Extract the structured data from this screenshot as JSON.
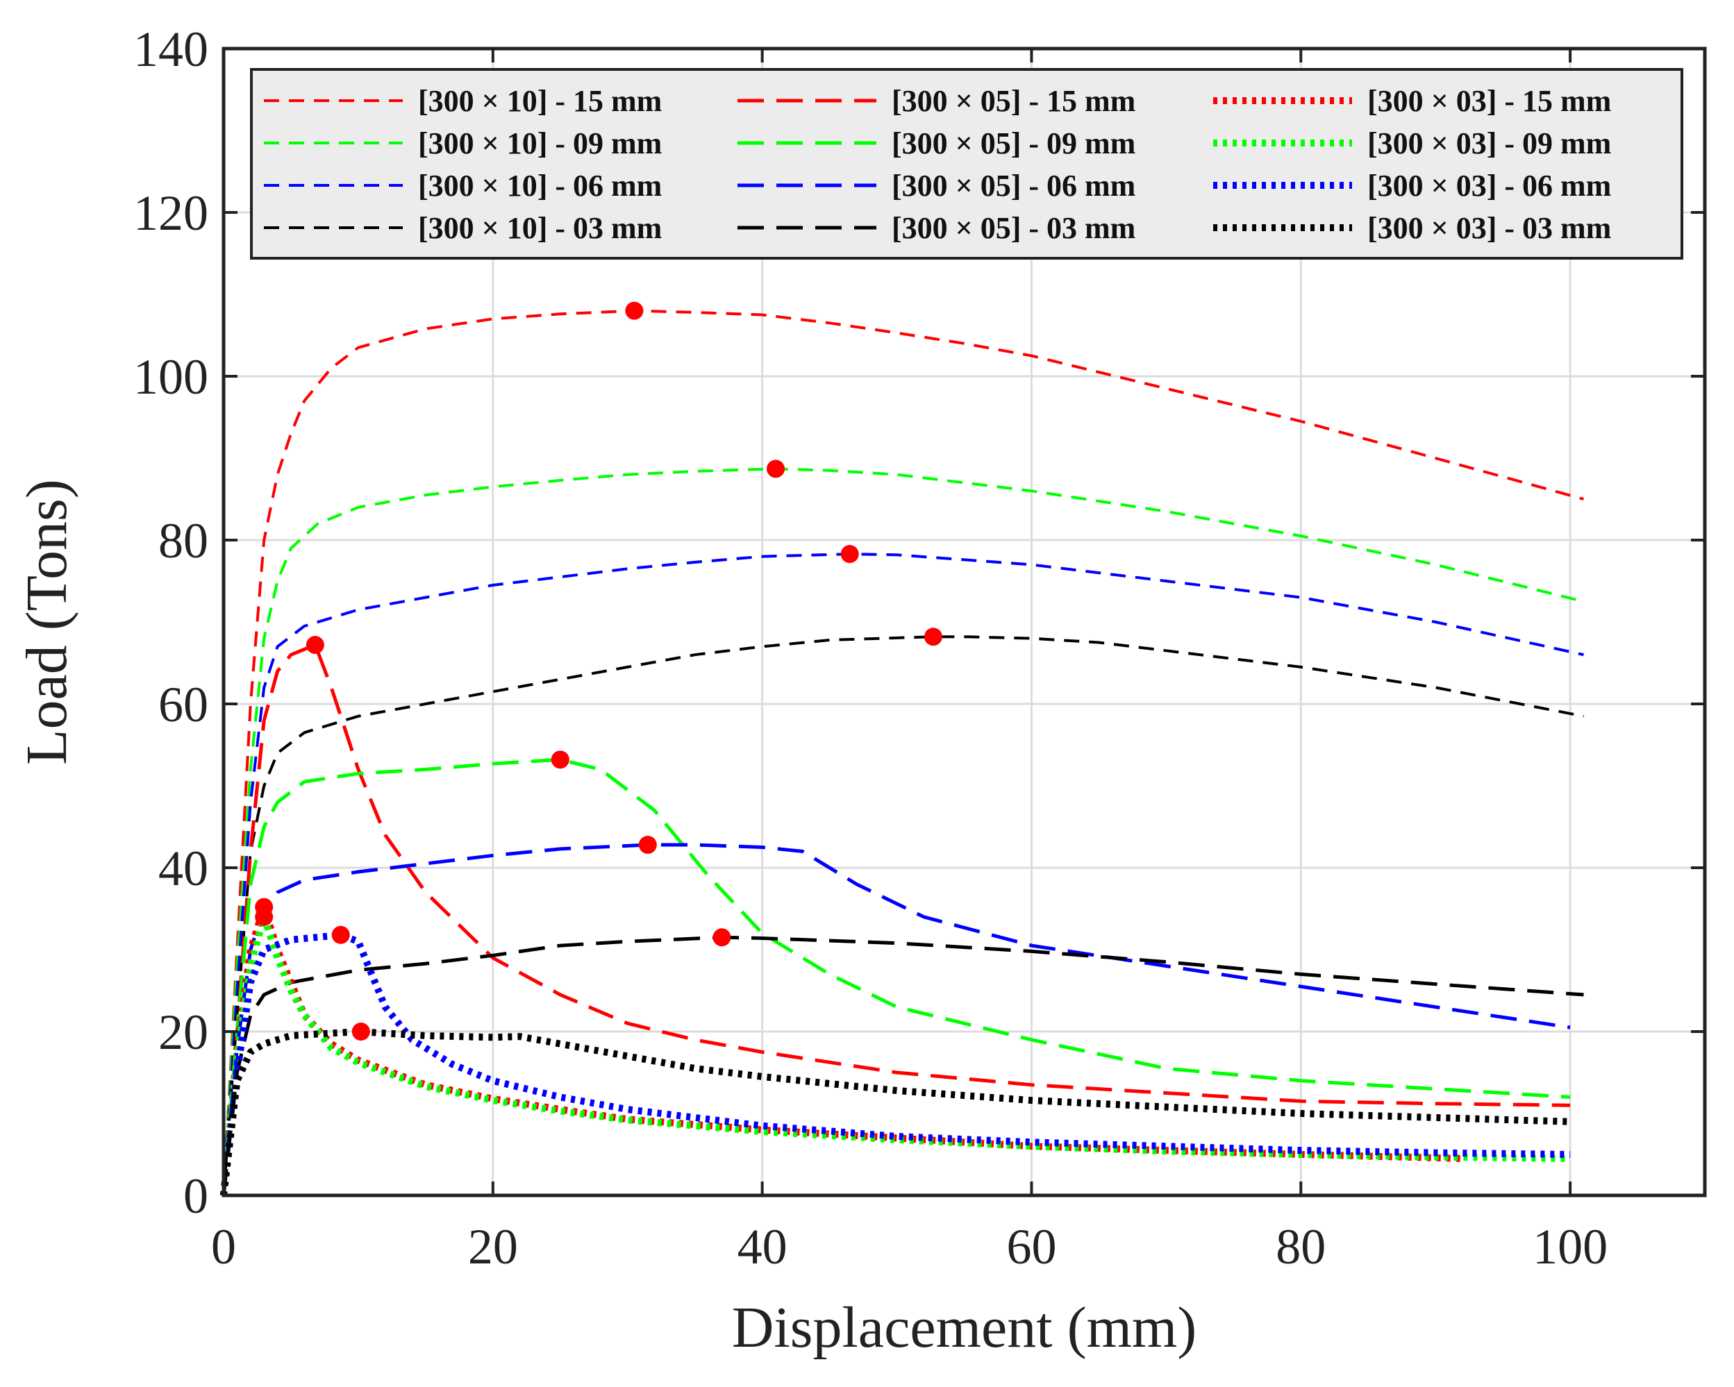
{
  "chart_data": {
    "type": "line",
    "title": "",
    "xlabel": "Displacement (mm)",
    "ylabel": "Load (Tons)",
    "xlim": [
      0,
      110
    ],
    "ylim": [
      0,
      140
    ],
    "xticks": [
      0,
      20,
      40,
      60,
      80,
      100
    ],
    "yticks": [
      0,
      20,
      40,
      60,
      80,
      100,
      120,
      140
    ],
    "grid": true,
    "legend_position": "top",
    "legend_columns": 3,
    "series": [
      {
        "name": "[300 × 10] - 15 mm",
        "color": "#ff0000",
        "style": "dashed-short",
        "points": [
          [
            0,
            0
          ],
          [
            1,
            30
          ],
          [
            2,
            60
          ],
          [
            3,
            80
          ],
          [
            4,
            88
          ],
          [
            5,
            93
          ],
          [
            6,
            97
          ],
          [
            7,
            99
          ],
          [
            8,
            101
          ],
          [
            10,
            103.5
          ],
          [
            15,
            105.8
          ],
          [
            20,
            107
          ],
          [
            25,
            107.6
          ],
          [
            30.5,
            108
          ],
          [
            35,
            107.8
          ],
          [
            40,
            107.5
          ],
          [
            45,
            106.5
          ],
          [
            50,
            105.3
          ],
          [
            55,
            104
          ],
          [
            60,
            102.5
          ],
          [
            70,
            98.5
          ],
          [
            80,
            94.5
          ],
          [
            90,
            90
          ],
          [
            101,
            85
          ]
        ],
        "peak": [
          30.5,
          108
        ]
      },
      {
        "name": "[300 × 10] - 09 mm",
        "color": "#00ff00",
        "style": "dashed-short",
        "points": [
          [
            0,
            0
          ],
          [
            1,
            28
          ],
          [
            2,
            52
          ],
          [
            3,
            68
          ],
          [
            4,
            75
          ],
          [
            5,
            79
          ],
          [
            7,
            82
          ],
          [
            10,
            84
          ],
          [
            15,
            85.5
          ],
          [
            20,
            86.5
          ],
          [
            25,
            87.3
          ],
          [
            30,
            88
          ],
          [
            35,
            88.4
          ],
          [
            41,
            88.7
          ],
          [
            45,
            88.5
          ],
          [
            50,
            88
          ],
          [
            55,
            87
          ],
          [
            60,
            86
          ],
          [
            70,
            83.5
          ],
          [
            80,
            80.5
          ],
          [
            90,
            77
          ],
          [
            101,
            72.5
          ]
        ],
        "peak": [
          41,
          88.7
        ]
      },
      {
        "name": "[300 × 10] - 06 mm",
        "color": "#0000ff",
        "style": "dashed-short",
        "points": [
          [
            0,
            0
          ],
          [
            1,
            25
          ],
          [
            2,
            48
          ],
          [
            3,
            62
          ],
          [
            4,
            67
          ],
          [
            6,
            69.5
          ],
          [
            10,
            71.5
          ],
          [
            15,
            73
          ],
          [
            20,
            74.5
          ],
          [
            25,
            75.5
          ],
          [
            30,
            76.5
          ],
          [
            35,
            77.3
          ],
          [
            40,
            78
          ],
          [
            46.5,
            78.3
          ],
          [
            50,
            78.2
          ],
          [
            55,
            77.6
          ],
          [
            60,
            77
          ],
          [
            70,
            75
          ],
          [
            80,
            73
          ],
          [
            90,
            70
          ],
          [
            101,
            66
          ]
        ],
        "peak": [
          46.5,
          78.3
        ]
      },
      {
        "name": "[300 × 10] - 03 mm",
        "color": "#000000",
        "style": "dashed-short",
        "points": [
          [
            0,
            0
          ],
          [
            1,
            22
          ],
          [
            2,
            42
          ],
          [
            3,
            50
          ],
          [
            4,
            54
          ],
          [
            6,
            56.5
          ],
          [
            10,
            58.5
          ],
          [
            15,
            60
          ],
          [
            20,
            61.5
          ],
          [
            25,
            63
          ],
          [
            30,
            64.5
          ],
          [
            35,
            66
          ],
          [
            40,
            67
          ],
          [
            45,
            67.8
          ],
          [
            52.7,
            68.2
          ],
          [
            55,
            68.2
          ],
          [
            60,
            68
          ],
          [
            65,
            67.5
          ],
          [
            70,
            66.5
          ],
          [
            80,
            64.5
          ],
          [
            90,
            62
          ],
          [
            101,
            58.5
          ]
        ],
        "peak": [
          52.7,
          68.2
        ]
      },
      {
        "name": "[300 × 05] - 15 mm",
        "color": "#ff0000",
        "style": "dashed-long",
        "points": [
          [
            0,
            0
          ],
          [
            1,
            20
          ],
          [
            2,
            42
          ],
          [
            3,
            58
          ],
          [
            4,
            64
          ],
          [
            5,
            66
          ],
          [
            6.8,
            67.2
          ],
          [
            8,
            62
          ],
          [
            10,
            52
          ],
          [
            12,
            44
          ],
          [
            15,
            37
          ],
          [
            20,
            29
          ],
          [
            25,
            24.5
          ],
          [
            30,
            21
          ],
          [
            35,
            19
          ],
          [
            40,
            17.5
          ],
          [
            50,
            15
          ],
          [
            60,
            13.5
          ],
          [
            70,
            12.5
          ],
          [
            80,
            11.5
          ],
          [
            90,
            11.2
          ],
          [
            100,
            11
          ]
        ],
        "peak": [
          6.8,
          67.2
        ]
      },
      {
        "name": "[300 × 05] - 09 mm",
        "color": "#00ff00",
        "style": "dashed-long",
        "points": [
          [
            0,
            0
          ],
          [
            1,
            20
          ],
          [
            2,
            38
          ],
          [
            3,
            45
          ],
          [
            4,
            48
          ],
          [
            6,
            50.5
          ],
          [
            10,
            51.5
          ],
          [
            15,
            52
          ],
          [
            20,
            52.7
          ],
          [
            25,
            53.2
          ],
          [
            28,
            52
          ],
          [
            32,
            47
          ],
          [
            36,
            39
          ],
          [
            40,
            32
          ],
          [
            45,
            27
          ],
          [
            50,
            23
          ],
          [
            60,
            19
          ],
          [
            70,
            15.5
          ],
          [
            80,
            14
          ],
          [
            90,
            13
          ],
          [
            100,
            12
          ]
        ],
        "peak": [
          25,
          53.2
        ]
      },
      {
        "name": "[300 × 05] - 06 mm",
        "color": "#0000ff",
        "style": "dashed-long",
        "points": [
          [
            0,
            0
          ],
          [
            1,
            18
          ],
          [
            2,
            30
          ],
          [
            3,
            35
          ],
          [
            4,
            37
          ],
          [
            6,
            38.5
          ],
          [
            10,
            39.5
          ],
          [
            15,
            40.5
          ],
          [
            20,
            41.5
          ],
          [
            25,
            42.3
          ],
          [
            31.5,
            42.8
          ],
          [
            35,
            42.8
          ],
          [
            40,
            42.5
          ],
          [
            43,
            42
          ],
          [
            47,
            38
          ],
          [
            52,
            34
          ],
          [
            60,
            30.5
          ],
          [
            70,
            28
          ],
          [
            80,
            25.5
          ],
          [
            90,
            23
          ],
          [
            100,
            20.5
          ]
        ],
        "peak": [
          31.5,
          42.8
        ]
      },
      {
        "name": "[300 × 05] - 03 mm",
        "color": "#000000",
        "style": "dashed-long",
        "points": [
          [
            0,
            0
          ],
          [
            1,
            15
          ],
          [
            2,
            22
          ],
          [
            3,
            24.5
          ],
          [
            5,
            26
          ],
          [
            10,
            27.5
          ],
          [
            15,
            28.3
          ],
          [
            20,
            29.3
          ],
          [
            25,
            30.5
          ],
          [
            30,
            31
          ],
          [
            37,
            31.5
          ],
          [
            40,
            31.4
          ],
          [
            50,
            30.8
          ],
          [
            60,
            29.8
          ],
          [
            70,
            28.5
          ],
          [
            80,
            27
          ],
          [
            90,
            25.8
          ],
          [
            101,
            24.5
          ]
        ],
        "peak": [
          37,
          31.5
        ]
      },
      {
        "name": "[300 × 03] - 15 mm",
        "color": "#ff0000",
        "style": "dotted",
        "points": [
          [
            0,
            0
          ],
          [
            1,
            18
          ],
          [
            2,
            30
          ],
          [
            3,
            35.2
          ],
          [
            4,
            30
          ],
          [
            5,
            26
          ],
          [
            6,
            22
          ],
          [
            8,
            18.5
          ],
          [
            10,
            16.5
          ],
          [
            15,
            13.5
          ],
          [
            20,
            11.8
          ],
          [
            25,
            10.5
          ],
          [
            30,
            9.3
          ],
          [
            40,
            8
          ],
          [
            50,
            7
          ],
          [
            60,
            6
          ],
          [
            70,
            5.5
          ],
          [
            80,
            5
          ],
          [
            92,
            4.5
          ]
        ],
        "peak": [
          3,
          35.2
        ]
      },
      {
        "name": "[300 × 03] - 09 mm",
        "color": "#00ff00",
        "style": "dotted",
        "points": [
          [
            0,
            0
          ],
          [
            1,
            17
          ],
          [
            2,
            28
          ],
          [
            3,
            34
          ],
          [
            4,
            29
          ],
          [
            5,
            25
          ],
          [
            6,
            22
          ],
          [
            8,
            18
          ],
          [
            10,
            16.2
          ],
          [
            15,
            13.3
          ],
          [
            20,
            11.6
          ],
          [
            25,
            10.3
          ],
          [
            30,
            9.2
          ],
          [
            40,
            7.8
          ],
          [
            50,
            6.8
          ],
          [
            60,
            6
          ],
          [
            70,
            5.4
          ],
          [
            80,
            5
          ],
          [
            90,
            4.7
          ],
          [
            100,
            4.5
          ]
        ],
        "peak": [
          3,
          34
        ]
      },
      {
        "name": "[300 × 03] - 06 mm",
        "color": "#0000ff",
        "style": "dotted",
        "points": [
          [
            0,
            0
          ],
          [
            1,
            15
          ],
          [
            2,
            26
          ],
          [
            3,
            30
          ],
          [
            5,
            31.2
          ],
          [
            8.7,
            31.8
          ],
          [
            10,
            31
          ],
          [
            11,
            27
          ],
          [
            12,
            23
          ],
          [
            14,
            19
          ],
          [
            17,
            16
          ],
          [
            20,
            14
          ],
          [
            25,
            12
          ],
          [
            30,
            10.5
          ],
          [
            40,
            8.5
          ],
          [
            50,
            7.2
          ],
          [
            60,
            6.5
          ],
          [
            70,
            6
          ],
          [
            80,
            5.5
          ],
          [
            90,
            5.2
          ],
          [
            100,
            5
          ]
        ],
        "peak": [
          8.7,
          31.8
        ]
      },
      {
        "name": "[300 × 03] - 03 mm",
        "color": "#000000",
        "style": "dotted",
        "points": [
          [
            0,
            0
          ],
          [
            1,
            14
          ],
          [
            2,
            17.5
          ],
          [
            3,
            18.5
          ],
          [
            5,
            19.5
          ],
          [
            10,
            20
          ],
          [
            15,
            19.5
          ],
          [
            20,
            19.3
          ],
          [
            22,
            19.4
          ],
          [
            25,
            18.5
          ],
          [
            30,
            17
          ],
          [
            35,
            15.5
          ],
          [
            40,
            14.5
          ],
          [
            50,
            12.8
          ],
          [
            60,
            11.6
          ],
          [
            70,
            10.8
          ],
          [
            80,
            10
          ],
          [
            90,
            9.5
          ],
          [
            100,
            9
          ]
        ],
        "peak": [
          10.2,
          20
        ]
      }
    ]
  }
}
